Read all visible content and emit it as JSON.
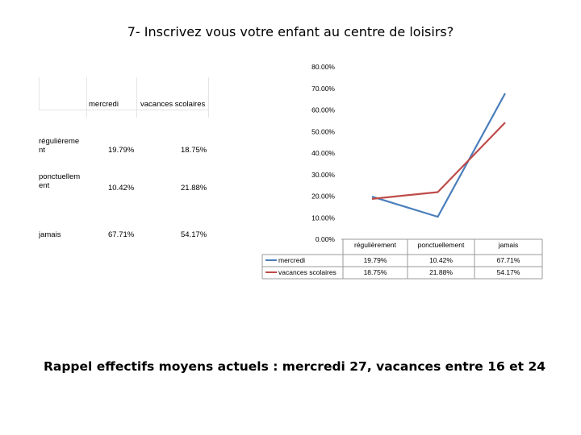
{
  "page": {
    "title": "7- Inscrivez vous votre enfant au centre de loisirs?",
    "footer": "Rappel effectifs moyens actuels : mercredi 27, vacances entre 16 et 24"
  },
  "table": {
    "headers": [
      "mercredi",
      "vacances scolaires"
    ],
    "rows": [
      {
        "label": "régulièrement",
        "label_lines": [
          "régulièreme",
          "nt"
        ],
        "values": [
          "19.79%",
          "18.75%"
        ]
      },
      {
        "label": "ponctuellement",
        "label_lines": [
          "ponctuellem",
          "ent"
        ],
        "values": [
          "10.42%",
          "21.88%"
        ]
      },
      {
        "label": "jamais",
        "label_lines": [
          "jamais",
          ""
        ],
        "values": [
          "67.71%",
          "54.17%"
        ]
      }
    ]
  },
  "chart_data": {
    "type": "line",
    "title": "",
    "xlabel": "",
    "ylabel": "",
    "categories": [
      "régulièrement",
      "ponctuellement",
      "jamais"
    ],
    "series": [
      {
        "name": "mercredi",
        "values": [
          19.79,
          10.42,
          67.71
        ],
        "labels": [
          "19.79%",
          "10.42%",
          "67.71%"
        ],
        "color": "#4a7ebb"
      },
      {
        "name": "vacances scolaires",
        "values": [
          18.75,
          21.88,
          54.17
        ],
        "labels": [
          "18.75%",
          "21.88%",
          "54.17%"
        ],
        "color": "#be4b48"
      }
    ],
    "ylim": [
      0,
      80
    ],
    "yticks": [
      0,
      10,
      20,
      30,
      40,
      50,
      60,
      70,
      80
    ],
    "ytick_labels": [
      "0.00%",
      "10.00%",
      "20.00%",
      "30.00%",
      "40.00%",
      "50.00%",
      "60.00%",
      "70.00%",
      "80.00%"
    ],
    "grid": false,
    "legend": "data-table-bottom"
  }
}
